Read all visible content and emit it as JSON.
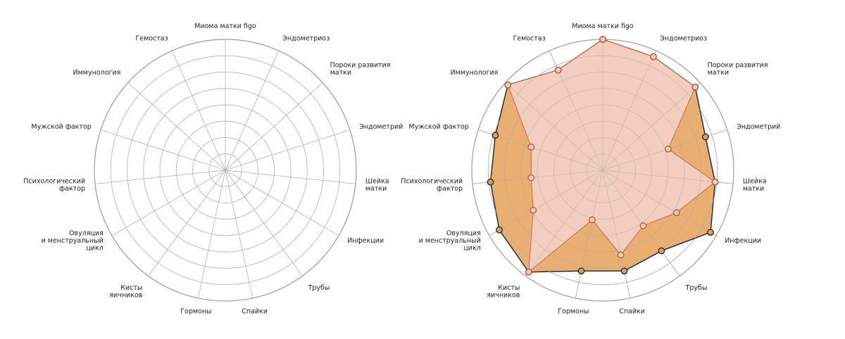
{
  "chart_data": [
    {
      "type": "radar",
      "categories": [
        "Миома матки figo",
        "Эндометриоз",
        "Пороки развития\nматки",
        "Эндометрий",
        "Шейка\nматки",
        "Инфекции",
        "Трубы",
        "Спайки",
        "Гормоны",
        "Кисты\nяичников",
        "Овуляция\nи менструальный\nцикл",
        "Психологический\nфактор",
        "Мужской фактор",
        "Иммунология",
        "Гемостаз"
      ],
      "rlim": [
        0,
        8
      ],
      "rings": 8,
      "grid": true,
      "series": []
    },
    {
      "type": "radar",
      "categories": [
        "Миома матки figo",
        "Эндометриоз",
        "Пороки развития\nматки",
        "Эндометрий",
        "Шейка\nматки",
        "Инфекции",
        "Трубы",
        "Спайки",
        "Гормоны",
        "Кисты\nяичников",
        "Овуляция\nи менструальный\nцикл",
        "Психологический\nфактор",
        "Мужской фактор",
        "Иммунология",
        "Гемостаз"
      ],
      "rlim": [
        0,
        8
      ],
      "rings": 8,
      "grid": true,
      "series": [
        {
          "values": [
            8,
            7.6,
            7.6,
            6.6,
            6.9,
            7.6,
            6.1,
            6.3,
            6.3,
            7.7,
            7.3,
            6.9,
            6.9,
            7.8,
            6.7
          ],
          "fill": "#e8ab6a",
          "stroke": "#222222",
          "marker_fill": "#d9a066",
          "marker_stroke": "#222222"
        },
        {
          "values": [
            8,
            7.6,
            7.6,
            4.2,
            6.9,
            5.2,
            4.2,
            5.3,
            3.1,
            7.7,
            4.9,
            4.4,
            4.6,
            7.8,
            6.7
          ],
          "fill": "#f4d2c6",
          "stroke": "#c46a4a",
          "marker_fill": "#f7c9b8",
          "marker_stroke": "#b5573a"
        }
      ]
    }
  ]
}
